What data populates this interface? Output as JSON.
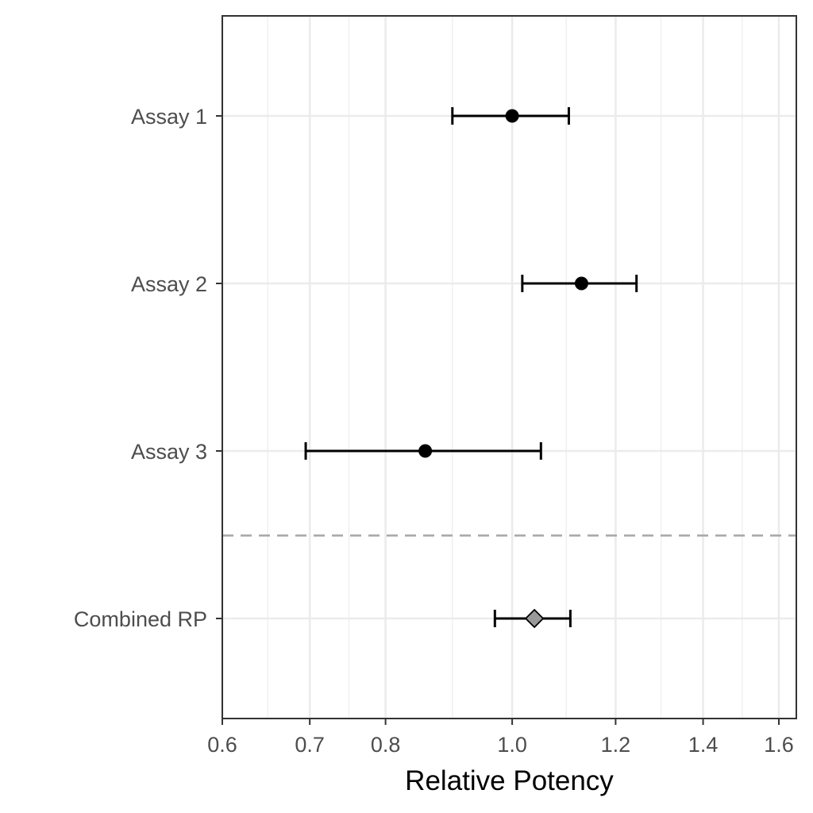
{
  "chart_data": {
    "type": "forest",
    "xlabel": "Relative Potency",
    "x_scale": "log",
    "xlim": [
      0.6,
      1.65
    ],
    "x_ticks": [
      0.6,
      0.7,
      0.8,
      1.0,
      1.2,
      1.4,
      1.6
    ],
    "x_tick_labels": [
      "0.6",
      "0.7",
      "0.8",
      "1.0",
      "1.2",
      "1.4",
      "1.6"
    ],
    "grid": true,
    "separator": "dashed line between Assay 3 and Combined RP",
    "rows": [
      {
        "label": "Assay 1",
        "estimate": 1.0,
        "lower": 0.9,
        "upper": 1.105,
        "marker": "circle",
        "color": "#000000"
      },
      {
        "label": "Assay 2",
        "estimate": 1.13,
        "lower": 1.018,
        "upper": 1.245,
        "marker": "circle",
        "color": "#000000"
      },
      {
        "label": "Assay 3",
        "estimate": 0.858,
        "lower": 0.695,
        "upper": 1.052,
        "marker": "circle",
        "color": "#000000"
      },
      {
        "label": "Combined RP",
        "estimate": 1.04,
        "lower": 0.97,
        "upper": 1.108,
        "marker": "diamond",
        "color": "#999999"
      }
    ]
  }
}
